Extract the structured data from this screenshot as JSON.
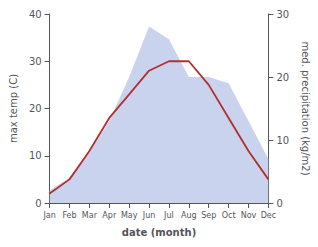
{
  "chart_data": {
    "type": "line",
    "categories": [
      "Jan",
      "Feb",
      "Mar",
      "Apr",
      "May",
      "Jun",
      "Jul",
      "Aug",
      "Sep",
      "Oct",
      "Nov",
      "Dec"
    ],
    "xlabel": "date (month)",
    "ylabel": "max temp (C)",
    "y2label": "med. precipitation (kg/m2)",
    "series": [
      {
        "type": "area",
        "axis": "y2",
        "color": "#b8c4e8",
        "values": [
          2,
          4,
          8,
          13,
          20,
          28,
          26,
          20,
          20,
          19,
          13,
          7
        ]
      },
      {
        "type": "line",
        "color": "#b03030",
        "values": [
          2,
          5,
          11,
          18,
          23,
          28,
          30,
          30,
          25,
          18,
          11,
          5
        ]
      }
    ],
    "ylim": [
      0,
      40
    ],
    "yticks": [
      0,
      10,
      20,
      30,
      40
    ],
    "y2lim": [
      0,
      30
    ],
    "y2ticks": [
      0,
      10,
      20,
      30
    ],
    "grid": false
  }
}
